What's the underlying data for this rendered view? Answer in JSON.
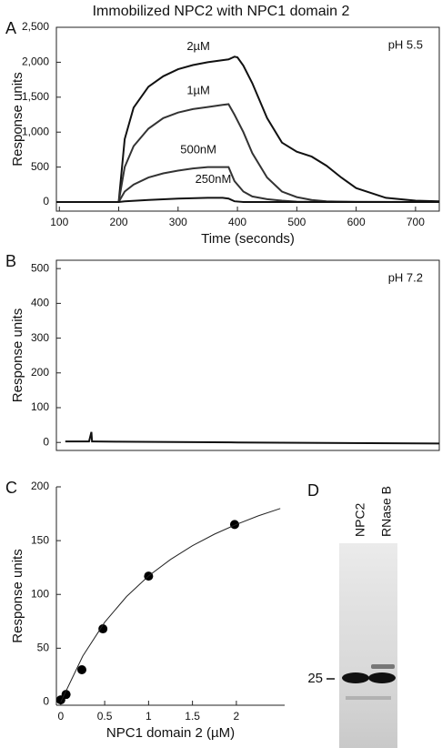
{
  "title": "Immobilized NPC2 with NPC1 domain 2",
  "chart_data": [
    {
      "type": "line",
      "panel": "A",
      "annotation": "pH 5.5",
      "xlabel": "Time (seconds)",
      "ylabel": "Response units",
      "xlim": [
        95,
        740
      ],
      "ylim": [
        -130,
        2500
      ],
      "xticks": [
        100,
        200,
        300,
        400,
        500,
        600,
        700
      ],
      "yticks": [
        0,
        500,
        {
          "value": 1000,
          "label": "1,000"
        },
        {
          "value": 1500,
          "label": "1,500"
        },
        {
          "value": 2000,
          "label": "2,000"
        },
        {
          "value": 2500,
          "label": "2,500"
        }
      ],
      "series": [
        {
          "name": "2µM",
          "color": "#111111",
          "x": [
            95,
            190,
            200,
            210,
            225,
            250,
            275,
            300,
            325,
            350,
            375,
            385,
            395,
            400,
            410,
            425,
            450,
            475,
            500,
            525,
            550,
            575,
            600,
            650,
            700,
            740
          ],
          "values": [
            0,
            0,
            0,
            900,
            1350,
            1650,
            1800,
            1900,
            1960,
            2000,
            2030,
            2040,
            2080,
            2070,
            1950,
            1700,
            1200,
            850,
            720,
            650,
            520,
            350,
            200,
            60,
            20,
            10
          ]
        },
        {
          "name": "1µM",
          "color": "#333333",
          "x": [
            95,
            190,
            200,
            210,
            225,
            250,
            275,
            300,
            325,
            350,
            375,
            385,
            395,
            410,
            425,
            450,
            475,
            500,
            525,
            550,
            600,
            740
          ],
          "values": [
            0,
            0,
            0,
            500,
            800,
            1050,
            1200,
            1280,
            1330,
            1360,
            1390,
            1400,
            1250,
            1000,
            700,
            350,
            150,
            70,
            30,
            10,
            0,
            0
          ]
        },
        {
          "name": "500nM",
          "color": "#333333",
          "x": [
            95,
            190,
            200,
            210,
            225,
            250,
            275,
            300,
            325,
            350,
            375,
            385,
            395,
            410,
            425,
            450,
            475,
            500,
            740
          ],
          "values": [
            0,
            0,
            0,
            150,
            250,
            350,
            410,
            450,
            480,
            500,
            500,
            500,
            300,
            150,
            80,
            40,
            20,
            5,
            0
          ]
        },
        {
          "name": "250nM",
          "color": "#111111",
          "x": [
            95,
            190,
            200,
            210,
            250,
            300,
            350,
            375,
            385,
            395,
            410,
            740
          ],
          "values": [
            0,
            0,
            0,
            10,
            30,
            50,
            60,
            60,
            50,
            10,
            0,
            0
          ]
        }
      ]
    },
    {
      "type": "line",
      "panel": "B",
      "annotation": "pH 7.2",
      "ylabel": "Response units",
      "xlim": [
        95,
        740
      ],
      "ylim": [
        -23,
        524
      ],
      "yticks": [
        0,
        100,
        200,
        300,
        400,
        500
      ],
      "series": [
        {
          "color": "#111111",
          "x": [
            110,
            150,
            154,
            155,
            157,
            200,
            400,
            740
          ],
          "values": [
            3,
            3,
            30,
            3,
            3,
            2,
            0,
            -3
          ]
        }
      ]
    },
    {
      "type": "scatter",
      "panel": "C",
      "xlabel": "NPC1 domain 2 (µM)",
      "ylabel": "Response units",
      "xlim": [
        -0.05,
        2.55
      ],
      "ylim": [
        -3,
        200
      ],
      "xticks": [
        0,
        0.5,
        1,
        1.5,
        2
      ],
      "yticks": [
        0,
        50,
        100,
        150,
        200
      ],
      "series": [
        {
          "marker": "circle",
          "color": "#000000",
          "x": [
            0,
            0.06,
            0.24,
            0.48,
            1,
            1.98
          ],
          "values": [
            2,
            7,
            30,
            68,
            117,
            165
          ]
        },
        {
          "marker": "line",
          "color": "#222222",
          "x": [
            0,
            0.25,
            0.5,
            0.75,
            1,
            1.25,
            1.5,
            1.75,
            2,
            2.25,
            2.5
          ],
          "values": [
            0,
            42.7,
            74.1,
            98.1,
            117.2,
            132.5,
            145.3,
            156.0,
            165.1,
            173.0,
            179.9
          ]
        }
      ]
    }
  ],
  "gel": {
    "panel": "D",
    "lanes": [
      "NPC2",
      "RNase B"
    ],
    "marker": "25"
  }
}
